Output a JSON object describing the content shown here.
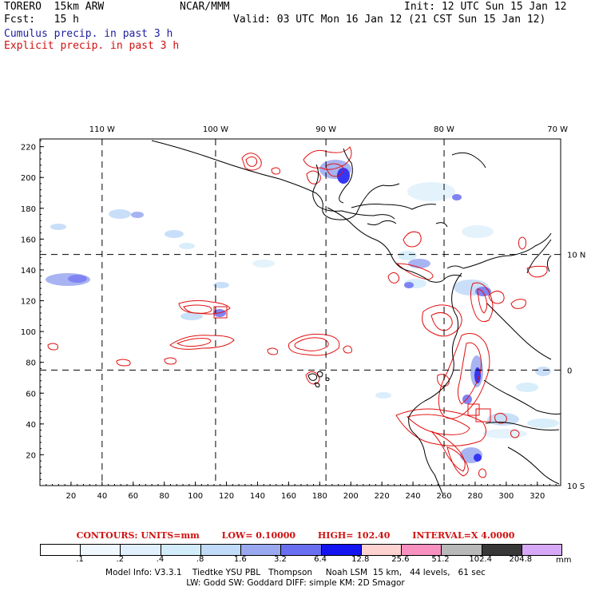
{
  "header": {
    "model": "TORERO  15km ARW",
    "org": "NCAR/MMM",
    "init": "Init: 12 UTC Sun 15 Jan 12",
    "fcst": "Fcst:   15 h",
    "valid": "Valid: 03 UTC Mon 16 Jan 12 (21 CST Sun 15 Jan 12)",
    "cumulus": "Cumulus precip. in past 3 h",
    "explicit": "Explicit precip. in past 3 h"
  },
  "colors": {
    "cumulus_text": "#2020a0",
    "explicit_text": "#d01010",
    "contour": "#e01010",
    "coast": "#000000"
  },
  "map": {
    "lon_labels": [
      "110 W",
      "100 W",
      "90 W",
      "80 W",
      "70 W"
    ],
    "lat_labels": [
      "10 N",
      "0",
      "10 S"
    ],
    "x_ticks": [
      "20",
      "40",
      "60",
      "80",
      "100",
      "120",
      "140",
      "160",
      "180",
      "200",
      "220",
      "240",
      "260",
      "280",
      "300",
      "320"
    ],
    "y_ticks": [
      "220",
      "200",
      "180",
      "160",
      "140",
      "120",
      "100",
      "80",
      "60",
      "40",
      "20"
    ],
    "x_range": [
      0,
      335
    ],
    "y_range": [
      0,
      225
    ],
    "grid_x": [
      40,
      113,
      184,
      260
    ],
    "grid_y": [
      75,
      150
    ]
  },
  "contours_info": {
    "contours": "CONTOURS:  UNITS=mm",
    "low": "LOW=  0.10000",
    "high": "HIGH=   102.40",
    "interval": "INTERVAL=X  4.0000"
  },
  "legend": {
    "labels": [
      ".1",
      ".2",
      ".4",
      ".8",
      "1.6",
      "3.2",
      "6.4",
      "12.8",
      "25.6",
      "51.2",
      "102.4",
      "204.8"
    ],
    "colors": [
      "#ffffff",
      "#f0f8ff",
      "#e0f0fc",
      "#d2ecfa",
      "#c0daf8",
      "#9aa8f0",
      "#6a6ef0",
      "#1414f0",
      "#ffd2d2",
      "#f890c0",
      "#b8b8b8",
      "#383838",
      "#d8a8f8"
    ],
    "unit": "mm"
  },
  "footer": {
    "line1": "Model Info: V3.3.1    Tiedtke YSU PBL   Thompson     Noah LSM  15 km,   44 levels,   61 sec",
    "line2": "LW: Godd SW: Goddard DIFF: simple KM: 2D Smagor"
  }
}
